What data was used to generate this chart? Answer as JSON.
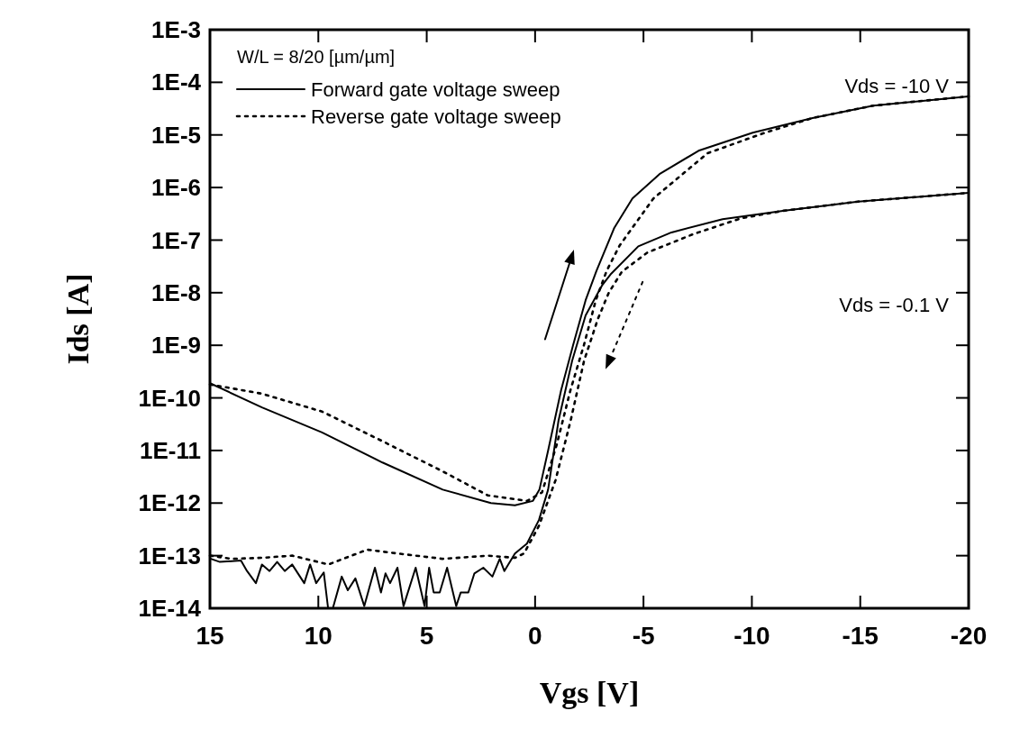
{
  "chart_data": {
    "type": "line",
    "xlabel": "Vgs [V]",
    "ylabel": "Ids [A]",
    "log": "y",
    "xlim": [
      15,
      -20
    ],
    "xticks": [
      15,
      10,
      5,
      0,
      -5,
      -10,
      -15,
      -20
    ],
    "ylim": [
      1e-14,
      0.001
    ],
    "yticks": [
      {
        "value": 1e-14,
        "label": "1E-14"
      },
      {
        "value": 1e-13,
        "label": "1E-13"
      },
      {
        "value": 1e-12,
        "label": "1E-12"
      },
      {
        "value": 1e-11,
        "label": "1E-11"
      },
      {
        "value": 1e-10,
        "label": "1E-10"
      },
      {
        "value": 1e-09,
        "label": "1E-9"
      },
      {
        "value": 1e-08,
        "label": "1E-8"
      },
      {
        "value": 1e-07,
        "label": "1E-7"
      },
      {
        "value": 1e-06,
        "label": "1E-6"
      },
      {
        "value": 1e-05,
        "label": "1E-5"
      },
      {
        "value": 0.0001,
        "label": "1E-4"
      },
      {
        "value": 0.001,
        "label": "1E-3"
      }
    ],
    "legend": "top left",
    "annotations": [
      "W/L = 8/20 [µm/µm]",
      "Vds = -10 V",
      "Vds = -0.1 V"
    ],
    "series": [
      {
        "name": "Forward gate voltage sweep",
        "color": "#000000",
        "line_style": "solid",
        "x": [
          15,
          12.6,
          9.83,
          7.04,
          4.26,
          2.04,
          0.93,
          0.1,
          -0.2,
          -0.6,
          -1.2,
          -1.75,
          -2.33,
          -2.83,
          -3.65,
          -4.49,
          -5.74,
          -7.54,
          -10.04,
          -12.8,
          -15.6,
          -20
        ],
        "values": [
          1.9e-10,
          6.6e-11,
          2.2e-11,
          5.9e-12,
          1.8e-12,
          1e-12,
          9.1e-13,
          1.1e-12,
          1.8e-12,
          1e-11,
          1.4e-10,
          1e-09,
          7.2e-09,
          2.6e-08,
          1.7e-07,
          6.2e-07,
          1.8e-06,
          5e-06,
          1.1e-05,
          2.1e-05,
          3.6e-05,
          5.4e-05
        ]
      },
      {
        "name": "Reverse gate voltage sweep",
        "color": "#000000",
        "line_style": "dotted",
        "x": [
          15,
          12.6,
          9.83,
          7.04,
          4.26,
          2.18,
          0.37,
          -0.32,
          -1.0,
          -1.63,
          -2.25,
          -2.8,
          -3.3,
          -3.9,
          -5.46,
          -7.96,
          -10.6,
          -12.8,
          -15.6,
          -20
        ],
        "values": [
          1.8e-10,
          1.2e-10,
          5.5e-11,
          1.5e-11,
          4e-12,
          1.4e-12,
          1.1e-12,
          1.6e-12,
          1.3e-11,
          1.4e-10,
          1e-09,
          7.2e-09,
          2.6e-08,
          7.9e-08,
          6.2e-07,
          4.5e-06,
          1.1e-05,
          2.1e-05,
          3.6e-05,
          5.4e-05
        ]
      },
      {
        "color": "#000000",
        "line_style": "solid",
        "x": [
          14.96,
          14.54,
          13.57,
          13.29,
          12.88,
          12.6,
          12.25,
          11.9,
          11.55,
          11.21,
          10.65,
          10.38,
          10.1,
          9.75,
          9.55,
          9.33,
          8.92,
          8.64,
          8.29,
          7.88,
          7.39,
          7.11,
          6.9,
          6.69,
          6.35,
          6.07,
          5.51,
          5.1,
          4.89,
          4.68,
          4.4,
          4.06,
          3.64,
          3.43,
          3.08,
          2.8,
          2.39,
          1.97,
          1.63,
          1.42,
          0.93,
          0.375,
          -0.18,
          -0.6,
          -1.08,
          -1.71,
          -2.33,
          -3.1,
          -3.51,
          -4.76,
          -6.29,
          -8.65,
          -11.43,
          -14.9,
          -20
        ],
        "values": [
          8.7e-14,
          7.6e-14,
          8.1e-14,
          5.1e-14,
          3e-14,
          6.8e-14,
          5.1e-14,
          7.6e-14,
          5.1e-14,
          6.8e-14,
          3e-14,
          6.8e-14,
          3e-14,
          4.8e-14,
          1e-14,
          1e-14,
          4e-14,
          2.2e-14,
          3.7e-14,
          1.1e-14,
          5.9e-14,
          2e-14,
          4.6e-14,
          3e-14,
          5.9e-14,
          1.1e-14,
          5.9e-14,
          1.1e-14,
          5.9e-14,
          2e-14,
          2e-14,
          5.9e-14,
          1.1e-14,
          2e-14,
          2e-14,
          4.6e-14,
          5.9e-14,
          4e-14,
          8.7e-14,
          5.1e-14,
          1.1e-13,
          1.7e-13,
          4.8e-13,
          1.8e-12,
          3.7e-11,
          5.1e-10,
          3.7e-09,
          1.4e-08,
          2.3e-08,
          7.6e-08,
          1.4e-07,
          2.5e-07,
          3.6e-07,
          5.4e-07,
          7.9e-07
        ]
      },
      {
        "color": "#000000",
        "line_style": "dotted",
        "x": [
          15,
          14.0,
          12.6,
          11.2,
          9.54,
          7.74,
          6.35,
          4.26,
          2.18,
          0.93,
          0.51,
          -0.18,
          -0.94,
          -1.64,
          -2.26,
          -2.9,
          -3.4,
          -4.0,
          -5.18,
          -7.3,
          -9.5,
          -11.43,
          -14.9,
          -20
        ],
        "values": [
          1e-13,
          8.7e-14,
          9.1e-14,
          1e-13,
          6.8e-14,
          1.3e-13,
          1.1e-13,
          8.7e-14,
          1e-13,
          9.1e-14,
          1.1e-13,
          3.7e-13,
          2.7e-12,
          3.7e-11,
          5.1e-10,
          3.2e-09,
          1e-08,
          2.5e-08,
          5.8e-08,
          1.3e-07,
          2.6e-07,
          3.6e-07,
          5.4e-07,
          7.9e-07
        ]
      }
    ]
  }
}
